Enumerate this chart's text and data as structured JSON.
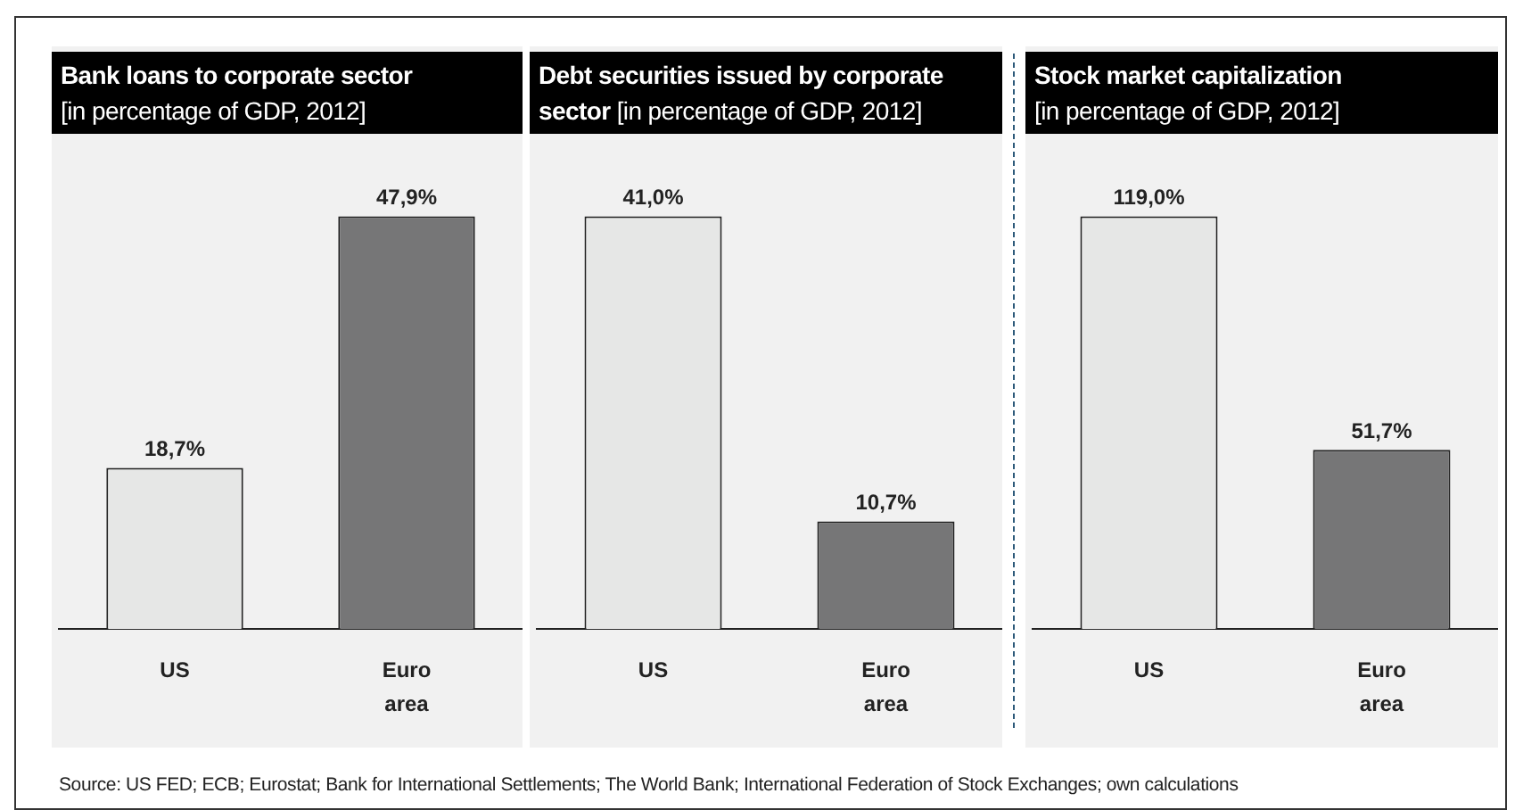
{
  "chart_data": [
    {
      "type": "bar",
      "title": "Bank loans to corporate sector",
      "subtitle": "[in percentage of GDP, 2012]",
      "categories": [
        "US",
        "Euro area"
      ],
      "values": [
        18.7,
        47.9
      ],
      "colors": [
        "#e6e7e6",
        "#767677"
      ],
      "value_labels": [
        "18,7%",
        "47,9%"
      ],
      "grid": false,
      "legend": false,
      "annotations": [
        "Source:  US FED; ECB; Eurostat; Bank for International Settlements; The World Bank; International Federation of Stock Exchanges; own calculations"
      ]
    },
    {
      "type": "bar",
      "title": "Debt securities issued by corporate sector",
      "subtitle": "[in percentage of GDP, 2012]",
      "categories": [
        "US",
        "Euro area"
      ],
      "values": [
        41.0,
        10.7
      ],
      "colors": [
        "#e6e7e6",
        "#767677"
      ],
      "value_labels": [
        "41,0%",
        "10,7%"
      ],
      "grid": false,
      "legend": false
    },
    {
      "type": "bar",
      "title": "Stock market capitalization",
      "subtitle": "[in percentage of GDP, 2012]",
      "categories": [
        "US",
        "Euro area"
      ],
      "values": [
        119.0,
        51.7
      ],
      "colors": [
        "#e6e7e6",
        "#767677"
      ],
      "value_labels": [
        "119,0%",
        "51,7%"
      ],
      "grid": false,
      "legend": false
    }
  ]
}
